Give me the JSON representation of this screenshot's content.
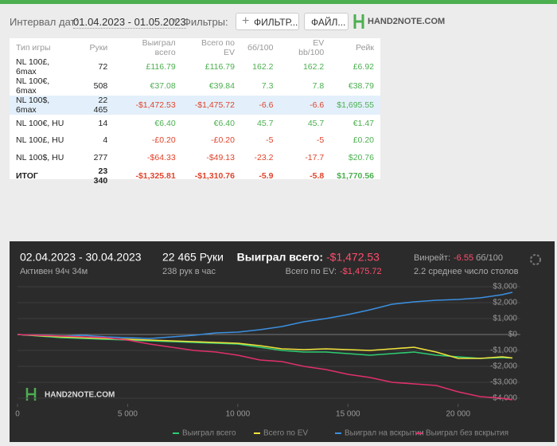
{
  "header": {
    "date_label": "Интервал дат:",
    "date_range": "01.04.2023 - 01.05.2023",
    "filters_label": "Фильтры:",
    "filter_button": "ФИЛЬТР...",
    "file_button": "ФАЙЛ...",
    "logo": "HAND2NOTE.COM"
  },
  "table": {
    "columns": [
      "Тип игры",
      "Руки",
      "Выиграл всего",
      "Всего по EV",
      "бб/100",
      "EV bb/100",
      "Рейк"
    ],
    "selected_row": 2,
    "rows": [
      [
        "NL 100£, 6max",
        "72",
        "£116.79",
        "£116.79",
        "162.2",
        "162.2",
        "£6.92"
      ],
      [
        "NL 100€, 6max",
        "508",
        "€37.08",
        "€39.84",
        "7.3",
        "7.8",
        "€38.79"
      ],
      [
        "NL 100$, 6max",
        "22 465",
        "-$1,472.53",
        "-$1,475.72",
        "-6.6",
        "-6.6",
        "$1,695.55"
      ],
      [
        "NL 100€, HU",
        "14",
        "€6.40",
        "€6.40",
        "45.7",
        "45.7",
        "€1.47"
      ],
      [
        "NL 100£, HU",
        "4",
        "-£0.20",
        "-£0.20",
        "-5",
        "-5",
        "£0.20"
      ],
      [
        "NL 100$, HU",
        "277",
        "-$64.33",
        "-$49.13",
        "-23.2",
        "-17.7",
        "$20.76"
      ]
    ],
    "total": [
      "ИТОГ",
      "23 340",
      "-$1,325.81",
      "-$1,310.76",
      "-5.9",
      "-5.8",
      "$1,770.56"
    ]
  },
  "panel": {
    "period": "02.04.2023 - 30.04.2023",
    "active": "Активен 94ч 34м",
    "hands": "22 465 Руки",
    "hands_per_hour": "238 рук в час",
    "won_label": "Выиграл всего:",
    "won_value": "-$1,472.53",
    "ev_label": "Всего по EV:",
    "ev_value": "-$1,475.72",
    "winrate_label": "Винрейт:",
    "winrate_value": "-6.55",
    "winrate_unit": "бб/100",
    "tables": "2.2 среднее число столов",
    "watermark": "HAND2NOTE.COM"
  },
  "chart_data": {
    "type": "line",
    "x": [
      0,
      1000,
      2000,
      3000,
      4000,
      5000,
      6000,
      7000,
      8000,
      9000,
      10000,
      11000,
      12000,
      13000,
      14000,
      15000,
      16000,
      17000,
      18000,
      19000,
      20000,
      21000,
      22000,
      22465
    ],
    "xlim": [
      0,
      22465
    ],
    "xticks": [
      0,
      {
        "value": 5000,
        "label": "5 000"
      },
      {
        "value": 10000,
        "label": "10 000"
      },
      {
        "value": 15000,
        "label": "15 000"
      },
      {
        "value": 20000,
        "label": "20 000"
      }
    ],
    "ylim": [
      -4250,
      3250
    ],
    "yticks": [
      {
        "value": 3000,
        "label": "$3,000"
      },
      {
        "value": 2000,
        "label": "$2,000"
      },
      {
        "value": 1000,
        "label": "$1,000"
      },
      {
        "value": 0,
        "label": "$0"
      },
      {
        "value": -1000,
        "label": "-$1,000"
      },
      {
        "value": -2000,
        "label": "-$2,000"
      },
      {
        "value": -3000,
        "label": "-$3,000"
      },
      {
        "value": -4000,
        "label": "-$4,000"
      }
    ],
    "grid": true,
    "series": [
      {
        "name": "Выиграл всего",
        "color": "#2ecc71",
        "values": [
          0,
          -100,
          -200,
          -250,
          -300,
          -350,
          -400,
          -450,
          -500,
          -550,
          -600,
          -800,
          -1000,
          -1100,
          -1100,
          -1200,
          -1300,
          -1200,
          -1100,
          -1300,
          -1400,
          -1500,
          -1450,
          -1473
        ]
      },
      {
        "name": "Всего по EV",
        "color": "#f1e33b",
        "values": [
          0,
          -80,
          -150,
          -200,
          -250,
          -300,
          -350,
          -400,
          -450,
          -500,
          -550,
          -700,
          -900,
          -950,
          -900,
          -950,
          -1000,
          -900,
          -800,
          -1100,
          -1500,
          -1500,
          -1400,
          -1476
        ]
      },
      {
        "name": "Выиграл на вскрытии",
        "color": "#3b8fe0",
        "values": [
          0,
          -50,
          -100,
          -50,
          -150,
          -200,
          -250,
          -150,
          -50,
          100,
          150,
          300,
          500,
          800,
          1000,
          1250,
          1550,
          1900,
          2050,
          2150,
          2200,
          2300,
          2500,
          2650
        ]
      },
      {
        "name": "Выиграл без вскрытия",
        "color": "#e0306a",
        "values": [
          0,
          -50,
          -100,
          -150,
          -200,
          -350,
          -600,
          -800,
          -1000,
          -1100,
          -1300,
          -1600,
          -1700,
          -2000,
          -2200,
          -2500,
          -2700,
          -3000,
          -3100,
          -3200,
          -3600,
          -3900,
          -4000,
          -4100
        ]
      }
    ]
  }
}
